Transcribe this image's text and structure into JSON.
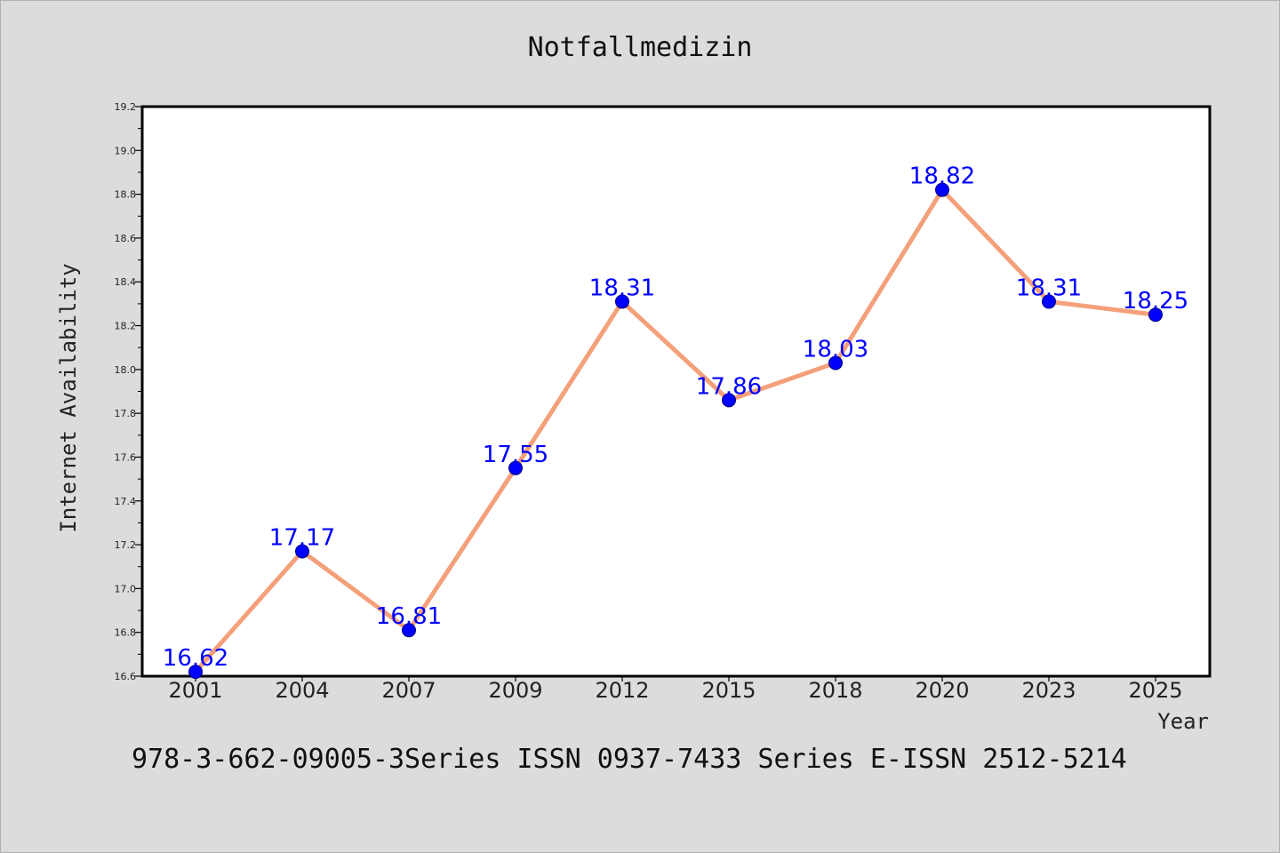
{
  "page": {
    "background": "#dcdcdc",
    "footer": "978-3-662-09005-3Series ISSN 0937-7433 Series E-ISSN 2512-5214"
  },
  "chart_data": {
    "type": "line",
    "title": "Notfallmedizin",
    "xlabel": "Year",
    "ylabel": "Internet Availability",
    "categories": [
      "2001",
      "2004",
      "2007",
      "2009",
      "2012",
      "2015",
      "2018",
      "2020",
      "2023",
      "2025"
    ],
    "series": [
      {
        "values": [
          16.62,
          17.17,
          16.81,
          17.55,
          18.31,
          17.86,
          18.03,
          18.82,
          18.31,
          18.25
        ],
        "line_color": "#f4a07a",
        "marker_color": "#0000ff"
      }
    ],
    "data_labels": [
      "16.62",
      "17.17",
      "16.81",
      "17.55",
      "18.31",
      "17.86",
      "18.03",
      "18.82",
      "18.31",
      "18.25"
    ],
    "ylim": [
      16.6,
      19.2
    ],
    "yticks": [
      "16.6",
      "16.8",
      "17.0",
      "17.2",
      "17.4",
      "17.6",
      "17.8",
      "18.0",
      "18.2",
      "18.4",
      "18.6",
      "18.8",
      "19.0",
      "19.2"
    ],
    "grid": false,
    "legend": "none"
  }
}
